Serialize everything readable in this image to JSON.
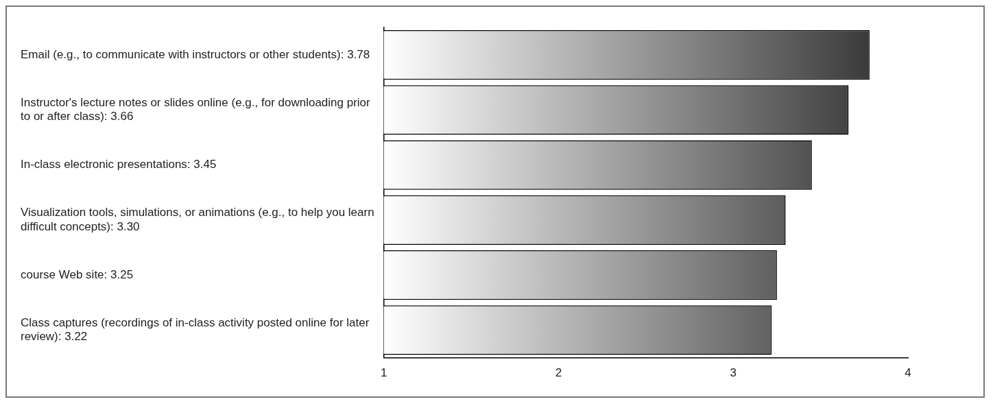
{
  "chart_data": {
    "type": "bar",
    "orientation": "horizontal",
    "categories": [
      "Email (e.g., to communicate with instructors or other students): 3.78",
      "Instructor's lecture notes or slides online (e.g., for downloading prior to or after class): 3.66",
      "In-class electronic presentations: 3.45",
      "Visualization tools, simulations, or animations (e.g., to help you learn difficult concepts): 3.30",
      "course Web site: 3.25",
      "Class captures (recordings of in-class activity posted online for later review): 3.22"
    ],
    "values": [
      3.78,
      3.66,
      3.45,
      3.3,
      3.25,
      3.22
    ],
    "color": "#2b2b2b",
    "xlim": [
      1,
      4
    ],
    "xticks": [
      1,
      2,
      3,
      4
    ],
    "grid": false,
    "legend": false
  }
}
